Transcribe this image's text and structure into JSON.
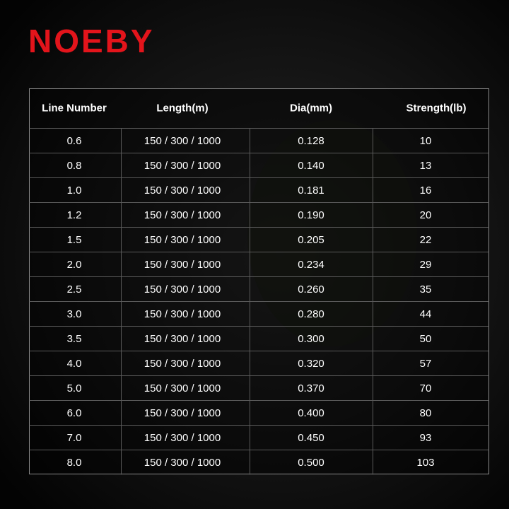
{
  "brand": "NOEBY",
  "table": {
    "headers": [
      "Line Number",
      "Length(m)",
      "Dia(mm)",
      "Strength(lb)"
    ],
    "rows": [
      [
        "0.6",
        "150 / 300 / 1000",
        "0.128",
        "10"
      ],
      [
        "0.8",
        "150 / 300 / 1000",
        "0.140",
        "13"
      ],
      [
        "1.0",
        "150 / 300 / 1000",
        "0.181",
        "16"
      ],
      [
        "1.2",
        "150 / 300 / 1000",
        "0.190",
        "20"
      ],
      [
        "1.5",
        "150 / 300 / 1000",
        "0.205",
        "22"
      ],
      [
        "2.0",
        "150 / 300 / 1000",
        "0.234",
        "29"
      ],
      [
        "2.5",
        "150 / 300 / 1000",
        "0.260",
        "35"
      ],
      [
        "3.0",
        "150 / 300 / 1000",
        "0.280",
        "44"
      ],
      [
        "3.5",
        "150 / 300 / 1000",
        "0.300",
        "50"
      ],
      [
        "4.0",
        "150 / 300 / 1000",
        "0.320",
        "57"
      ],
      [
        "5.0",
        "150 / 300 / 1000",
        "0.370",
        "70"
      ],
      [
        "6.0",
        "150 / 300 / 1000",
        "0.400",
        "80"
      ],
      [
        "7.0",
        "150 / 300 / 1000",
        "0.450",
        "93"
      ],
      [
        "8.0",
        "150 / 300 / 1000",
        "0.500",
        "103"
      ]
    ]
  }
}
